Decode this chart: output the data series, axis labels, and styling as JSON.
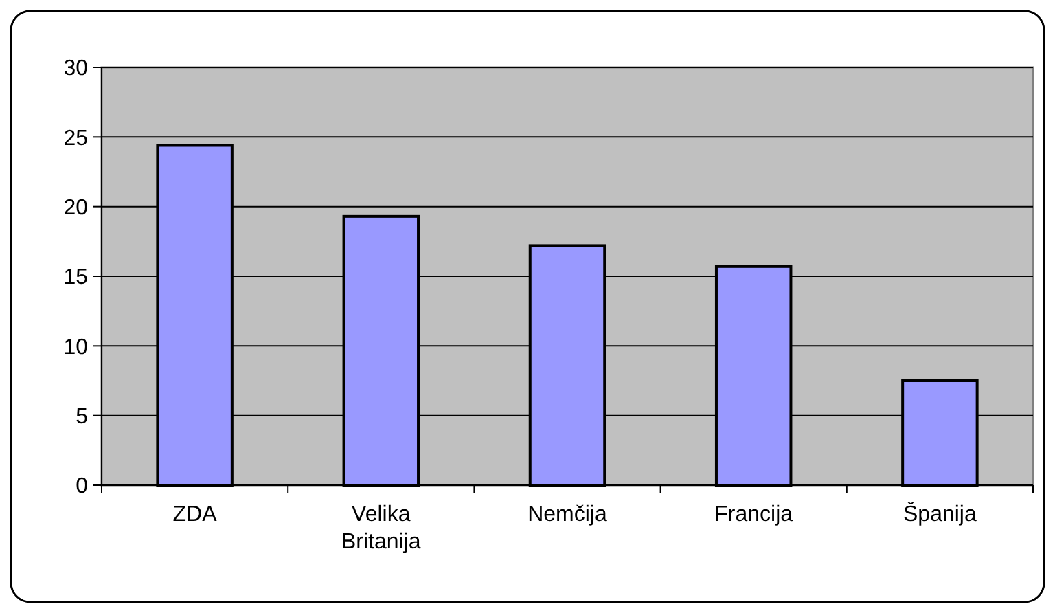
{
  "chart_data": {
    "type": "bar",
    "categories": [
      "ZDA",
      "Velika Britanija",
      "Nemčija",
      "Francija",
      "Španija"
    ],
    "values": [
      24.4,
      19.3,
      17.2,
      15.7,
      7.5
    ],
    "color": "#9999ff",
    "ylim": [
      0,
      30
    ],
    "yticks": [
      0,
      5,
      10,
      15,
      20,
      25,
      30
    ],
    "grid": "y"
  }
}
